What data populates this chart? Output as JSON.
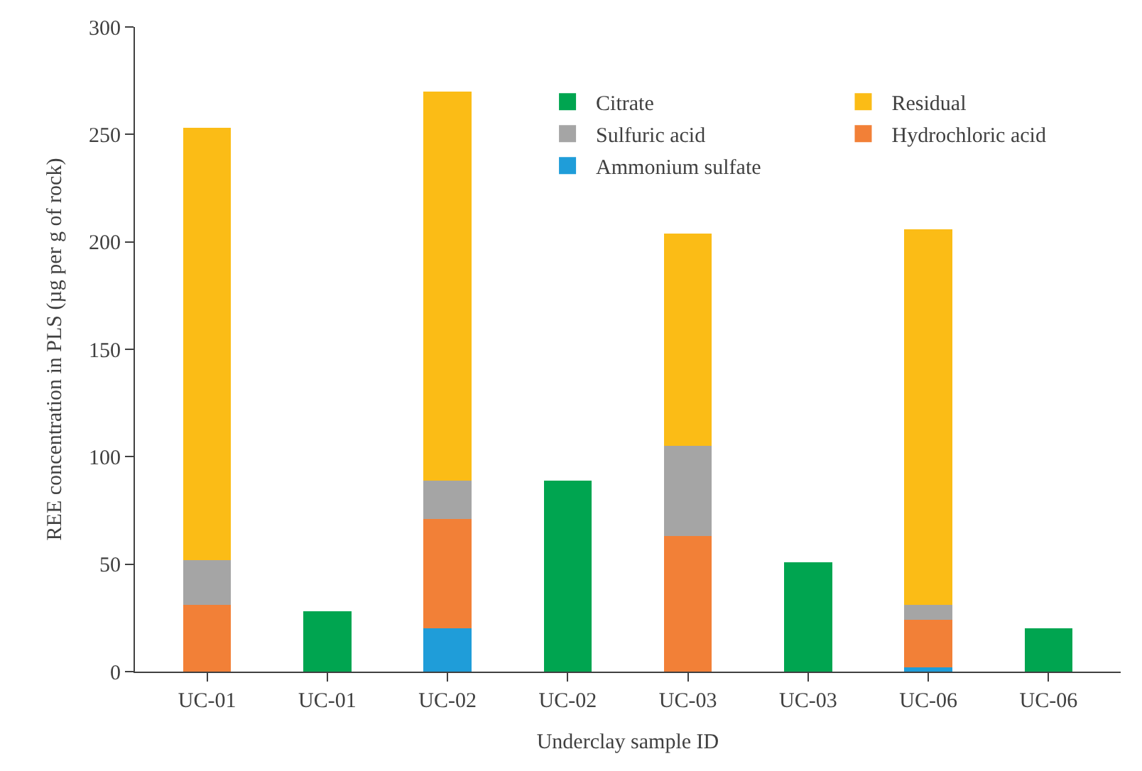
{
  "chart_data": {
    "type": "bar",
    "stacked": true,
    "xlabel": "Underclay sample ID",
    "ylabel": "REE concentration in PLS (µg per g of rock)",
    "categories": [
      "UC-01",
      "UC-01",
      "UC-02",
      "UC-02",
      "UC-03",
      "UC-03",
      "UC-06",
      "UC-06"
    ],
    "series": [
      {
        "name": "Ammonium sulfate",
        "color": "#1f9dd9",
        "values": [
          null,
          null,
          20,
          null,
          null,
          null,
          2,
          null
        ]
      },
      {
        "name": "Hydrochloric acid",
        "color": "#f28037",
        "values": [
          31,
          null,
          51,
          null,
          63,
          null,
          22,
          null
        ]
      },
      {
        "name": "Sulfuric acid",
        "color": "#a5a5a5",
        "values": [
          21,
          null,
          18,
          null,
          42,
          null,
          7,
          null
        ]
      },
      {
        "name": "Residual",
        "color": "#fbbc16",
        "values": [
          201,
          null,
          181,
          null,
          99,
          null,
          175,
          null
        ]
      },
      {
        "name": "Citrate",
        "color": "#00a550",
        "values": [
          null,
          28,
          null,
          89,
          null,
          51,
          null,
          20
        ]
      }
    ],
    "ylim": [
      0,
      300
    ],
    "yticks": [
      0,
      50,
      100,
      150,
      200,
      250,
      300
    ],
    "grid": false,
    "legend": "top right"
  }
}
